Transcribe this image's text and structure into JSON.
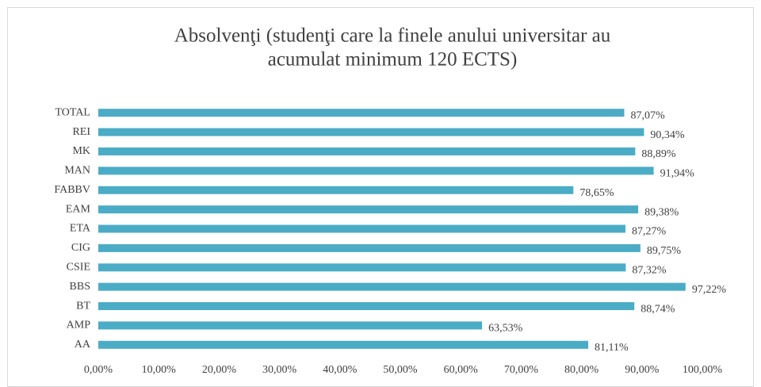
{
  "chart_data": {
    "type": "hbar",
    "title": [
      "Absolvenţi (studenţi care la finele anului universitar au",
      "acumulat minimum 120 ECTS)"
    ],
    "categories": [
      "TOTAL",
      "REI",
      "MK",
      "MAN",
      "FABBV",
      "EAM",
      "ETA",
      "CIG",
      "CSIE",
      "BBS",
      "BT",
      "AMP",
      "AA"
    ],
    "values": [
      87.07,
      90.34,
      88.89,
      91.94,
      78.65,
      89.38,
      87.27,
      89.75,
      87.32,
      97.22,
      88.74,
      63.53,
      81.11
    ],
    "value_labels": [
      "87,07%",
      "90,34%",
      "88,89%",
      "91,94%",
      "78,65%",
      "89,38%",
      "87,27%",
      "89,75%",
      "87,32%",
      "97,22%",
      "88,74%",
      "63,53%",
      "81,11%"
    ],
    "color": "#4bacc6",
    "xlim": [
      0,
      100
    ],
    "xticks": [
      {
        "value": 0,
        "label": "0,00%"
      },
      {
        "value": 10,
        "label": "10,00%"
      },
      {
        "value": 20,
        "label": "20,00%"
      },
      {
        "value": 30,
        "label": "30,00%"
      },
      {
        "value": 40,
        "label": "40,00%"
      },
      {
        "value": 50,
        "label": "50,00%"
      },
      {
        "value": 60,
        "label": "60,00%"
      },
      {
        "value": 70,
        "label": "70,00%"
      },
      {
        "value": 80,
        "label": "80,00%"
      },
      {
        "value": 90,
        "label": "90,00%"
      },
      {
        "value": 100,
        "label": "100,00%"
      }
    ]
  }
}
